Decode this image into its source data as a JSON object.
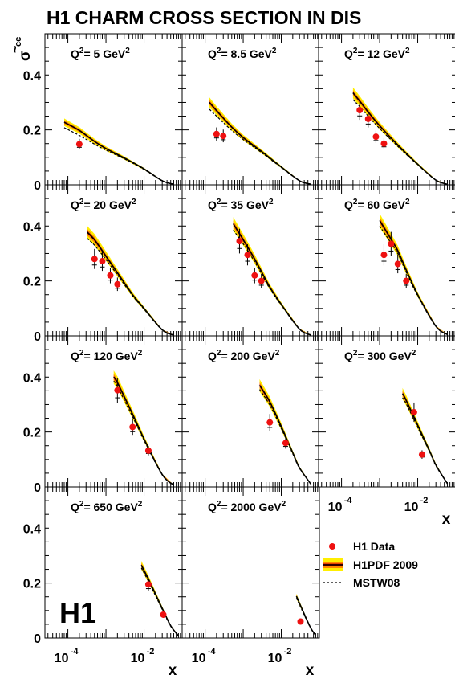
{
  "title": "H1 CHARM CROSS SECTION IN DIS",
  "logo": "H1",
  "colors": {
    "data": "#ee1111",
    "band_outer": "#ffee00",
    "band_inner": "#ff8800",
    "band_core": "#cc0000",
    "central": "#000000",
    "mstw": "#000000"
  },
  "chart_data": {
    "type": "scatter",
    "title": "H1 CHARM CROSS SECTION IN DIS",
    "ylabel": "σ̃ cc̄",
    "xlabel": "x",
    "xscale": "log",
    "xlim": [
      2.5e-05,
      0.1
    ],
    "ylim": [
      0,
      0.55
    ],
    "yticks": [
      "0",
      "0.2",
      "0.4"
    ],
    "xtick_labels": [
      {
        "base": "10",
        "exp": "-4"
      },
      {
        "base": "10",
        "exp": "-2"
      }
    ],
    "legend": [
      "H1 Data",
      "H1PDF 2009",
      "MSTW08"
    ],
    "panels": [
      {
        "label": "Q² = 5 GeV²",
        "label_base": "Q",
        "label_rest": "= 5 GeV",
        "points": [
          [
            0.0002,
            0.148
          ]
        ],
        "theory_x": [
          8e-05,
          0.0002,
          0.0005,
          0.001,
          0.003,
          0.01,
          0.03,
          0.06
        ],
        "theory_y": [
          0.228,
          0.198,
          0.158,
          0.132,
          0.098,
          0.058,
          0.015,
          0.002
        ],
        "mstw_y": [
          0.208,
          0.18,
          0.148,
          0.126,
          0.095,
          0.056,
          0.014,
          0.002
        ]
      },
      {
        "label": "Q² = 8.5 GeV²",
        "label_base": "Q",
        "label_rest": "= 8.5 GeV",
        "points": [
          [
            0.0002,
            0.185
          ],
          [
            0.0003,
            0.178
          ]
        ],
        "theory_x": [
          0.00013,
          0.0002,
          0.0005,
          0.001,
          0.003,
          0.01,
          0.03,
          0.06
        ],
        "theory_y": [
          0.3,
          0.27,
          0.21,
          0.172,
          0.122,
          0.065,
          0.015,
          0.002
        ],
        "mstw_y": [
          0.275,
          0.25,
          0.198,
          0.165,
          0.118,
          0.063,
          0.015,
          0.002
        ]
      },
      {
        "label": "Q² = 12 GeV²",
        "label_base": "Q",
        "label_rest": "= 12 GeV",
        "points": [
          [
            0.0003,
            0.272
          ],
          [
            0.0005,
            0.24
          ],
          [
            0.0008,
            0.175
          ],
          [
            0.0013,
            0.15
          ]
        ],
        "theory_x": [
          0.0002,
          0.0003,
          0.0005,
          0.001,
          0.003,
          0.01,
          0.03,
          0.06
        ],
        "theory_y": [
          0.335,
          0.305,
          0.265,
          0.215,
          0.145,
          0.075,
          0.017,
          0.002
        ],
        "mstw_y": [
          0.31,
          0.285,
          0.25,
          0.205,
          0.14,
          0.073,
          0.017,
          0.002
        ]
      },
      {
        "label": "Q² = 20 GeV²",
        "label_base": "Q",
        "label_rest": "= 20 GeV",
        "points": [
          [
            0.0005,
            0.28
          ],
          [
            0.0008,
            0.272
          ],
          [
            0.0013,
            0.22
          ],
          [
            0.002,
            0.188
          ]
        ],
        "theory_x": [
          0.00032,
          0.0005,
          0.001,
          0.002,
          0.005,
          0.01,
          0.03,
          0.06
        ],
        "theory_y": [
          0.378,
          0.35,
          0.29,
          0.23,
          0.15,
          0.1,
          0.022,
          0.003
        ],
        "mstw_y": [
          0.355,
          0.33,
          0.278,
          0.222,
          0.146,
          0.097,
          0.021,
          0.003
        ]
      },
      {
        "label": "Q² = 35 GeV²",
        "label_base": "Q",
        "label_rest": "= 35 GeV",
        "points": [
          [
            0.0008,
            0.345
          ],
          [
            0.0013,
            0.295
          ],
          [
            0.002,
            0.22
          ],
          [
            0.003,
            0.2
          ]
        ],
        "theory_x": [
          0.00055,
          0.001,
          0.002,
          0.005,
          0.01,
          0.03,
          0.06
        ],
        "theory_y": [
          0.408,
          0.35,
          0.28,
          0.178,
          0.115,
          0.025,
          0.003
        ],
        "mstw_y": [
          0.385,
          0.335,
          0.27,
          0.172,
          0.112,
          0.024,
          0.003
        ]
      },
      {
        "label": "Q² = 60 GeV²",
        "label_base": "Q",
        "label_rest": "= 60 GeV",
        "points": [
          [
            0.0013,
            0.295
          ],
          [
            0.002,
            0.335
          ],
          [
            0.003,
            0.262
          ],
          [
            0.005,
            0.2
          ]
        ],
        "theory_x": [
          0.001,
          0.002,
          0.003,
          0.005,
          0.01,
          0.03,
          0.06
        ],
        "theory_y": [
          0.42,
          0.352,
          0.31,
          0.24,
          0.15,
          0.035,
          0.005
        ],
        "mstw_y": [
          0.4,
          0.338,
          0.3,
          0.232,
          0.146,
          0.034,
          0.005
        ]
      },
      {
        "label": "Q² = 120 GeV²",
        "label_base": "Q",
        "label_rest": "= 120 GeV",
        "points": [
          [
            0.002,
            0.352
          ],
          [
            0.005,
            0.218
          ],
          [
            0.013,
            0.132
          ]
        ],
        "theory_x": [
          0.0016,
          0.002,
          0.005,
          0.01,
          0.03,
          0.06
        ],
        "theory_y": [
          0.4,
          0.38,
          0.265,
          0.175,
          0.045,
          0.007
        ],
        "mstw_y": [
          0.385,
          0.365,
          0.256,
          0.17,
          0.044,
          0.007
        ]
      },
      {
        "label": "Q² = 200 GeV²",
        "label_base": "Q",
        "label_rest": "= 200 GeV",
        "points": [
          [
            0.005,
            0.235
          ],
          [
            0.013,
            0.16
          ]
        ],
        "theory_x": [
          0.0027,
          0.005,
          0.01,
          0.02,
          0.03,
          0.06
        ],
        "theory_y": [
          0.37,
          0.31,
          0.22,
          0.125,
          0.07,
          0.01
        ],
        "mstw_y": [
          0.355,
          0.298,
          0.213,
          0.121,
          0.068,
          0.01
        ]
      },
      {
        "label": "Q² = 300 GeV²",
        "label_base": "Q",
        "label_rest": "= 300 GeV",
        "points": [
          [
            0.008,
            0.272
          ],
          [
            0.013,
            0.118
          ]
        ],
        "theory_x": [
          0.004,
          0.005,
          0.01,
          0.02,
          0.03,
          0.06
        ],
        "theory_y": [
          0.34,
          0.315,
          0.225,
          0.135,
          0.08,
          0.012
        ],
        "mstw_y": [
          0.325,
          0.303,
          0.217,
          0.131,
          0.077,
          0.012
        ]
      },
      {
        "label": "Q² = 650 GeV²",
        "label_base": "Q",
        "label_rest": "= 650 GeV",
        "points": [
          [
            0.013,
            0.195
          ],
          [
            0.032,
            0.085
          ]
        ],
        "theory_x": [
          0.0085,
          0.013,
          0.02,
          0.03,
          0.05,
          0.08
        ],
        "theory_y": [
          0.265,
          0.215,
          0.16,
          0.108,
          0.045,
          0.008
        ],
        "mstw_y": [
          0.255,
          0.207,
          0.154,
          0.104,
          0.043,
          0.008
        ]
      },
      {
        "label": "Q² = 2000 GeV²",
        "label_base": "Q",
        "label_rest": "= 2000 GeV",
        "points": [
          [
            0.032,
            0.06
          ]
        ],
        "theory_x": [
          0.025,
          0.032,
          0.045,
          0.06,
          0.08
        ],
        "theory_y": [
          0.152,
          0.118,
          0.072,
          0.035,
          0.01
        ],
        "mstw_y": [
          0.145,
          0.113,
          0.069,
          0.034,
          0.01
        ]
      }
    ]
  }
}
